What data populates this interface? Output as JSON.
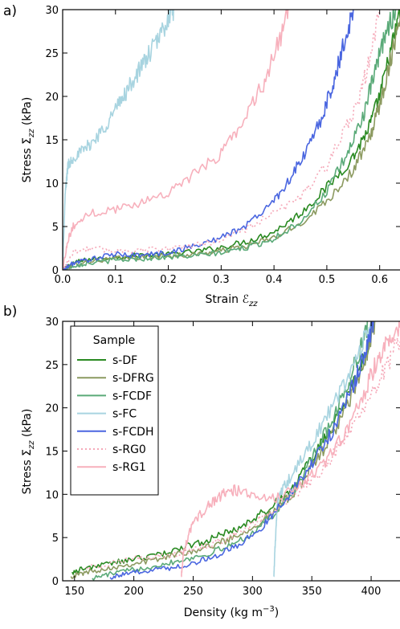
{
  "chart_data": [
    {
      "panel_label": "a)",
      "type": "line",
      "xlabel": "Strain ℰzz",
      "ylabel": "Stress Σzz (kPa)",
      "xlim": [
        0.0,
        0.64
      ],
      "ylim": [
        0,
        30
      ],
      "xticks": [
        "0.0",
        "0.1",
        "0.2",
        "0.3",
        "0.4",
        "0.5",
        "0.6"
      ],
      "yticks": [
        "0",
        "5",
        "10",
        "15",
        "20",
        "25",
        "30"
      ],
      "grid": false,
      "series": [
        {
          "name": "s-DF",
          "color": "#2a8a22",
          "dash": false,
          "x": [
            0.0,
            0.02,
            0.05,
            0.1,
            0.15,
            0.2,
            0.25,
            0.3,
            0.35,
            0.4,
            0.45,
            0.5,
            0.55,
            0.58,
            0.6,
            0.62,
            0.64
          ],
          "y": [
            0,
            0.8,
            1.2,
            1.5,
            1.7,
            1.8,
            2.1,
            2.6,
            3.3,
            4.4,
            6.5,
            9.5,
            13.0,
            16.5,
            20.0,
            25.0,
            30.0
          ]
        },
        {
          "name": "s-DFRG",
          "color": "#8c9a60",
          "dash": false,
          "x": [
            0.0,
            0.02,
            0.05,
            0.1,
            0.15,
            0.2,
            0.25,
            0.3,
            0.35,
            0.4,
            0.45,
            0.5,
            0.55,
            0.58,
            0.6,
            0.62,
            0.64
          ],
          "y": [
            0,
            0.6,
            1.0,
            1.3,
            1.5,
            1.6,
            1.8,
            2.2,
            2.8,
            3.7,
            5.3,
            8.0,
            11.5,
            15.0,
            19.0,
            24.0,
            30.0
          ]
        },
        {
          "name": "s-FCDF",
          "color": "#5aaa78",
          "dash": false,
          "x": [
            0.0,
            0.02,
            0.05,
            0.1,
            0.15,
            0.2,
            0.25,
            0.3,
            0.35,
            0.4,
            0.45,
            0.5,
            0.54,
            0.57,
            0.59,
            0.61,
            0.63
          ],
          "y": [
            0,
            0.5,
            0.8,
            1.1,
            1.3,
            1.5,
            1.6,
            2.0,
            2.6,
            3.6,
            5.6,
            9.0,
            13.5,
            18.0,
            22.5,
            27.0,
            30.0
          ]
        },
        {
          "name": "s-FC",
          "color": "#a8d4e0",
          "dash": false,
          "x": [
            0.0,
            0.005,
            0.01,
            0.02,
            0.04,
            0.06,
            0.08,
            0.1,
            0.12,
            0.14,
            0.16,
            0.18,
            0.2,
            0.21
          ],
          "y": [
            0,
            9.0,
            12.0,
            13.0,
            13.8,
            15.0,
            16.5,
            18.5,
            20.5,
            22.5,
            24.5,
            26.5,
            29.0,
            30.0
          ]
        },
        {
          "name": "s-FCDH",
          "color": "#4a66e0",
          "dash": false,
          "x": [
            0.0,
            0.02,
            0.05,
            0.1,
            0.15,
            0.2,
            0.25,
            0.3,
            0.35,
            0.4,
            0.43,
            0.46,
            0.49,
            0.51,
            0.53,
            0.55
          ],
          "y": [
            0,
            0.8,
            1.2,
            1.8,
            1.7,
            2.0,
            2.8,
            3.7,
            5.2,
            8.0,
            10.5,
            13.5,
            17.5,
            21.0,
            25.5,
            30.0
          ]
        },
        {
          "name": "s-RG0",
          "color": "#f5a8b8",
          "dash": true,
          "x": [
            0.0,
            0.02,
            0.05,
            0.1,
            0.15,
            0.2,
            0.25,
            0.3,
            0.35,
            0.4,
            0.45,
            0.5,
            0.53,
            0.56,
            0.58,
            0.6
          ],
          "y": [
            0,
            2.0,
            2.5,
            2.2,
            2.3,
            2.5,
            2.8,
            3.5,
            4.8,
            6.5,
            8.5,
            12.0,
            15.5,
            19.5,
            24.0,
            30.0
          ]
        },
        {
          "name": "s-RG1",
          "color": "#f7b0bc",
          "dash": false,
          "x": [
            0.0,
            0.01,
            0.02,
            0.05,
            0.1,
            0.15,
            0.2,
            0.25,
            0.3,
            0.34,
            0.38,
            0.41,
            0.43
          ],
          "y": [
            0,
            3.5,
            5.0,
            6.5,
            7.0,
            7.8,
            9.0,
            11.0,
            13.5,
            17.0,
            21.5,
            26.5,
            30.0
          ]
        }
      ]
    },
    {
      "panel_label": "b)",
      "type": "line",
      "xlabel": "Density (kg m⁻³)",
      "ylabel": "Stress Σzz (kPa)",
      "xlim": [
        140,
        425
      ],
      "ylim": [
        0,
        30
      ],
      "xticks": [
        "150",
        "200",
        "250",
        "300",
        "350",
        "400"
      ],
      "yticks": [
        "0",
        "5",
        "10",
        "15",
        "20",
        "25",
        "30"
      ],
      "grid": false,
      "legend": {
        "title": "Sample",
        "placement": "top-left"
      },
      "series": [
        {
          "name": "s-DF",
          "color": "#2a8a22",
          "dash": false,
          "x": [
            148,
            160,
            180,
            200,
            220,
            240,
            260,
            280,
            300,
            320,
            335,
            350,
            365,
            380,
            395,
            402
          ],
          "y": [
            1.0,
            1.5,
            2.0,
            2.5,
            3.0,
            3.8,
            4.6,
            5.6,
            7.0,
            9.0,
            11.0,
            14.0,
            17.5,
            21.0,
            26.0,
            30.0
          ]
        },
        {
          "name": "s-DFRG",
          "color": "#8c9a60",
          "dash": false,
          "x": [
            147,
            160,
            180,
            200,
            220,
            240,
            260,
            280,
            300,
            320,
            335,
            350,
            365,
            380,
            395,
            403
          ],
          "y": [
            0.5,
            1.0,
            1.5,
            2.0,
            2.5,
            3.2,
            3.8,
            4.8,
            6.2,
            8.2,
            10.2,
            13.0,
            16.5,
            20.0,
            25.5,
            30.0
          ]
        },
        {
          "name": "s-FCDF",
          "color": "#5aaa78",
          "dash": false,
          "x": [
            165,
            180,
            200,
            220,
            240,
            260,
            280,
            300,
            320,
            335,
            350,
            365,
            380,
            390,
            398
          ],
          "y": [
            0.3,
            0.8,
            1.3,
            1.8,
            2.4,
            3.0,
            4.0,
            5.5,
            8.0,
            10.5,
            14.0,
            18.0,
            22.5,
            26.5,
            30.0
          ]
        },
        {
          "name": "s-FC",
          "color": "#a8d4e0",
          "dash": false,
          "x": [
            318,
            319,
            321,
            325,
            335,
            350,
            365,
            380,
            392,
            400
          ],
          "y": [
            0.5,
            4.0,
            9.0,
            10.5,
            12.5,
            16.0,
            19.5,
            23.5,
            27.0,
            30.0
          ]
        },
        {
          "name": "s-FCDH",
          "color": "#4a66e0",
          "dash": false,
          "x": [
            180,
            195,
            210,
            230,
            250,
            270,
            290,
            310,
            325,
            340,
            355,
            370,
            385,
            395,
            402
          ],
          "y": [
            0.4,
            0.8,
            1.2,
            1.5,
            2.0,
            3.0,
            4.2,
            6.5,
            9.0,
            11.5,
            14.5,
            18.0,
            22.5,
            26.5,
            30.0
          ]
        },
        {
          "name": "s-RG0",
          "color": "#f5a8b8",
          "dash": true,
          "x": [
            160,
            180,
            200,
            220,
            240,
            260,
            280,
            300,
            320,
            340,
            360,
            380,
            400,
            415,
            425
          ],
          "y": [
            1.5,
            2.0,
            2.5,
            2.8,
            3.2,
            4.0,
            5.0,
            6.5,
            8.5,
            10.5,
            13.0,
            17.0,
            21.5,
            25.5,
            28.0
          ]
        },
        {
          "name": "s-RG1",
          "color": "#f7b0bc",
          "dash": false,
          "x": [
            240,
            242,
            248,
            255,
            265,
            275,
            285,
            300,
            320,
            340,
            360,
            380,
            395,
            405,
            415,
            425
          ],
          "y": [
            0.5,
            3.5,
            6.0,
            7.5,
            9.0,
            10.0,
            10.5,
            10.0,
            9.5,
            11.0,
            13.5,
            17.5,
            22.0,
            25.5,
            28.0,
            29.5
          ]
        }
      ]
    }
  ]
}
